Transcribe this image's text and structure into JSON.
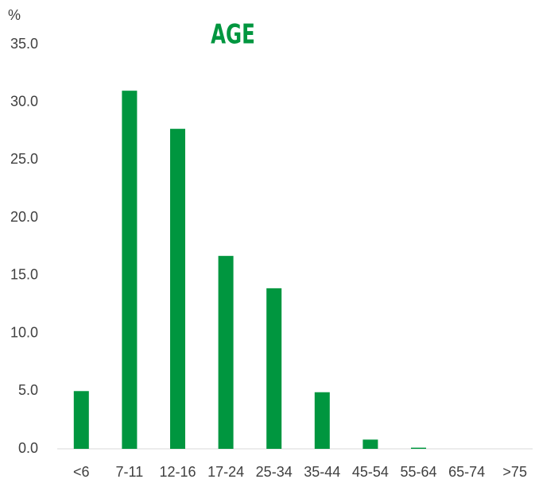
{
  "chart_data": {
    "type": "bar",
    "title": "AGE",
    "y_label": "%",
    "categories": [
      "<6",
      "7-11",
      "12-16",
      "17-24",
      "25-34",
      "35-44",
      "45-54",
      "55-64",
      "65-74",
      ">75"
    ],
    "values": [
      5.0,
      31.0,
      27.7,
      16.7,
      13.9,
      4.9,
      0.8,
      0.1,
      0,
      0
    ],
    "color": "#00963f",
    "ylim": [
      0,
      35
    ],
    "yticks": [
      {
        "value": 0,
        "label": "0.0"
      },
      {
        "value": 5,
        "label": "5.0"
      },
      {
        "value": 10,
        "label": "10.0"
      },
      {
        "value": 15,
        "label": "15.0"
      },
      {
        "value": 20,
        "label": "20.0"
      },
      {
        "value": 25,
        "label": "25.0"
      },
      {
        "value": 30,
        "label": "30.0"
      },
      {
        "value": 35,
        "label": "35.0"
      }
    ],
    "grid": false
  }
}
